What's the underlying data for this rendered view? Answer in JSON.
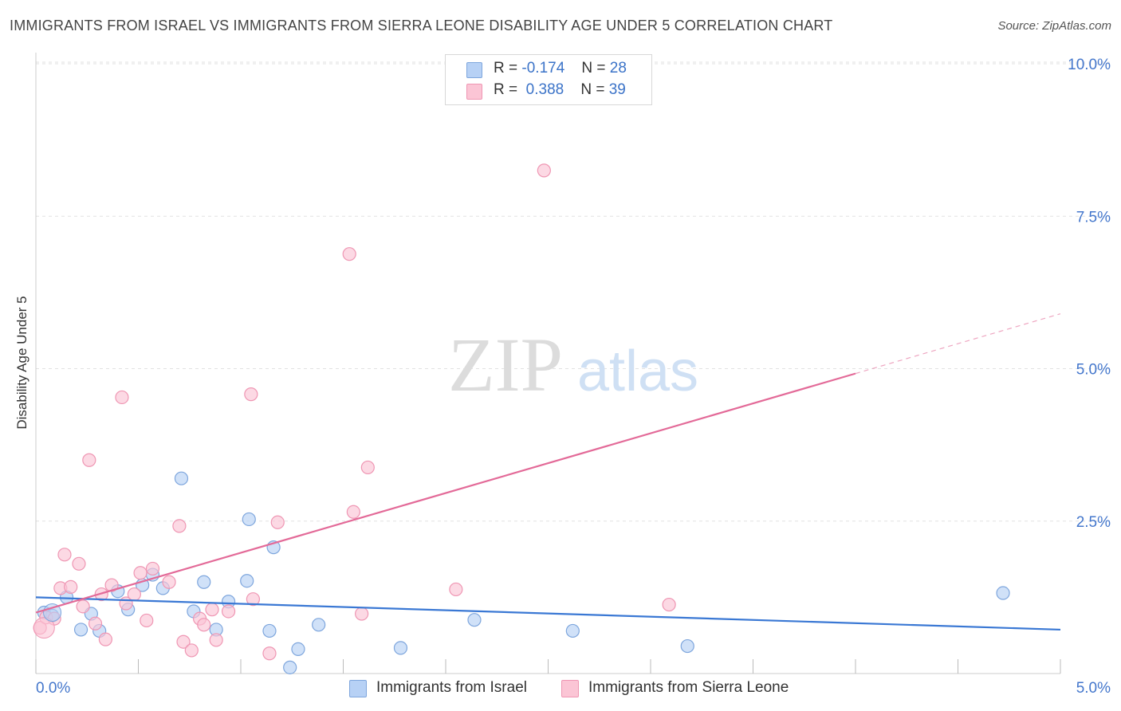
{
  "title": "IMMIGRANTS FROM ISRAEL VS IMMIGRANTS FROM SIERRA LEONE DISABILITY AGE UNDER 5 CORRELATION CHART",
  "source": "Source: ZipAtlas.com",
  "watermark": {
    "zip": "ZIP",
    "atlas": "atlas"
  },
  "colors": {
    "israel_fill": "#b7d1f5",
    "israel_stroke": "#7ea6dd",
    "israel_line": "#3a78d4",
    "sierra_fill": "#fbc5d5",
    "sierra_stroke": "#ef96b3",
    "sierra_line": "#e36a98",
    "tick_text": "#4477cc",
    "grid": "#e2e2e2"
  },
  "legend_top": {
    "rows": [
      {
        "r_label": "R =",
        "r_value": "-0.174",
        "n_label": "N =",
        "n_value": "28"
      },
      {
        "r_label": "R =",
        "r_value": "0.388",
        "n_label": "N =",
        "n_value": "39"
      }
    ]
  },
  "chart_data": {
    "type": "scatter",
    "title": "IMMIGRANTS FROM ISRAEL VS IMMIGRANTS FROM SIERRA LEONE DISABILITY AGE UNDER 5 CORRELATION CHART",
    "xlabel": "",
    "ylabel": "Disability Age Under 5",
    "xlim": [
      0,
      5
    ],
    "ylim": [
      0,
      10.5
    ],
    "x_tick_labels": [
      "0.0%",
      "5.0%"
    ],
    "y_ticks": [
      2.5,
      5.0,
      7.5,
      10.0
    ],
    "y_tick_labels": [
      "2.5%",
      "5.0%",
      "7.5%",
      "10.0%"
    ],
    "grid": "horizontal dashed",
    "legend_position": "bottom-center",
    "series": [
      {
        "name": "Immigrants from Israel",
        "r": -0.174,
        "n": 28,
        "trend": {
          "x": [
            0,
            5
          ],
          "y": [
            1.25,
            0.72
          ],
          "dashed_from": null
        },
        "points": [
          [
            0.04,
            1.0
          ],
          [
            0.08,
            0.95
          ],
          [
            0.15,
            1.25
          ],
          [
            0.22,
            0.72
          ],
          [
            0.27,
            0.98
          ],
          [
            0.31,
            0.7
          ],
          [
            0.4,
            1.35
          ],
          [
            0.45,
            1.05
          ],
          [
            0.52,
            1.45
          ],
          [
            0.57,
            1.62
          ],
          [
            0.62,
            1.4
          ],
          [
            0.71,
            3.2
          ],
          [
            0.77,
            1.02
          ],
          [
            0.82,
            1.5
          ],
          [
            0.88,
            0.72
          ],
          [
            0.94,
            1.18
          ],
          [
            1.03,
            1.52
          ],
          [
            1.04,
            2.53
          ],
          [
            1.14,
            0.7
          ],
          [
            1.16,
            2.07
          ],
          [
            1.24,
            0.1
          ],
          [
            1.28,
            0.4
          ],
          [
            1.38,
            0.8
          ],
          [
            1.78,
            0.42
          ],
          [
            2.14,
            0.88
          ],
          [
            2.62,
            0.7
          ],
          [
            3.18,
            0.45
          ],
          [
            4.72,
            1.32
          ]
        ]
      },
      {
        "name": "Immigrants from Sierra Leone",
        "r": 0.388,
        "n": 39,
        "trend": {
          "x": [
            0,
            5
          ],
          "y": [
            1.0,
            5.9
          ],
          "dashed_from": 4.0
        },
        "points": [
          [
            0.02,
            0.75
          ],
          [
            0.05,
            0.92
          ],
          [
            0.09,
            0.9
          ],
          [
            0.12,
            1.4
          ],
          [
            0.14,
            1.95
          ],
          [
            0.17,
            1.42
          ],
          [
            0.21,
            1.8
          ],
          [
            0.23,
            1.1
          ],
          [
            0.26,
            3.5
          ],
          [
            0.29,
            0.82
          ],
          [
            0.32,
            1.3
          ],
          [
            0.34,
            0.56
          ],
          [
            0.37,
            1.45
          ],
          [
            0.42,
            4.53
          ],
          [
            0.44,
            1.15
          ],
          [
            0.48,
            1.3
          ],
          [
            0.51,
            1.65
          ],
          [
            0.54,
            0.87
          ],
          [
            0.57,
            1.72
          ],
          [
            0.65,
            1.5
          ],
          [
            0.7,
            2.42
          ],
          [
            0.72,
            0.52
          ],
          [
            0.76,
            0.38
          ],
          [
            0.8,
            0.9
          ],
          [
            0.82,
            0.8
          ],
          [
            0.86,
            1.05
          ],
          [
            0.88,
            0.55
          ],
          [
            0.94,
            1.02
          ],
          [
            1.05,
            4.58
          ],
          [
            1.06,
            1.22
          ],
          [
            1.14,
            0.33
          ],
          [
            1.18,
            2.48
          ],
          [
            1.53,
            6.88
          ],
          [
            1.55,
            2.65
          ],
          [
            1.59,
            0.98
          ],
          [
            1.62,
            3.38
          ],
          [
            2.05,
            1.38
          ],
          [
            2.48,
            8.25
          ],
          [
            3.09,
            1.13
          ]
        ]
      }
    ]
  },
  "legend_bottom": [
    "Immigrants from Israel",
    "Immigrants from Sierra Leone"
  ]
}
